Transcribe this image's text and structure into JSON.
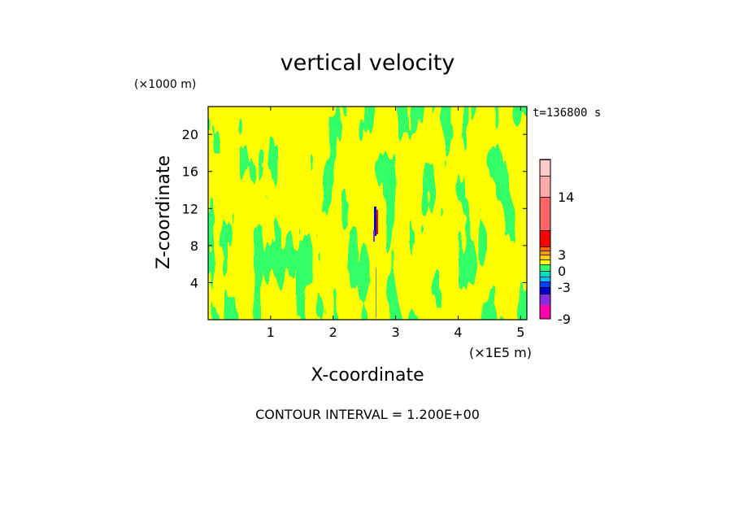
{
  "chart_data": {
    "type": "heatmap",
    "title": "vertical velocity",
    "ylabel": "Z-coordinate",
    "xlabel": "X-coordinate",
    "y_unit": "(×1000 m)",
    "x_unit": "(×1E5 m)",
    "time_label": "t=136800 s",
    "contour_interval_text": "CONTOUR INTERVAL = 1.200E+00",
    "xlim": [
      0,
      5.1
    ],
    "ylim": [
      0,
      23
    ],
    "x_ticks": [
      1,
      2,
      3,
      4,
      5
    ],
    "y_ticks": [
      4,
      8,
      12,
      16,
      20
    ],
    "colorbar": {
      "ticks": [
        14,
        3,
        0,
        -3,
        -9
      ],
      "levels": [
        {
          "color": "#ff00aa"
        },
        {
          "color": "#8a2be2"
        },
        {
          "color": "#0000cc"
        },
        {
          "color": "#0b40ff"
        },
        {
          "color": "#00bfff"
        },
        {
          "color": "#00e0c0"
        },
        {
          "color": "#33ff66"
        },
        {
          "color": "#ffff00"
        },
        {
          "color": "#ffcc00"
        },
        {
          "color": "#ff9900"
        },
        {
          "color": "#ff6600"
        },
        {
          "color": "#ff0000"
        },
        {
          "color": "#ff6666"
        },
        {
          "color": "#ffaaaa"
        },
        {
          "color": "#ffcccc"
        }
      ]
    },
    "field_colors": {
      "positive": "#ffff00",
      "negative": "#33ff66"
    }
  }
}
